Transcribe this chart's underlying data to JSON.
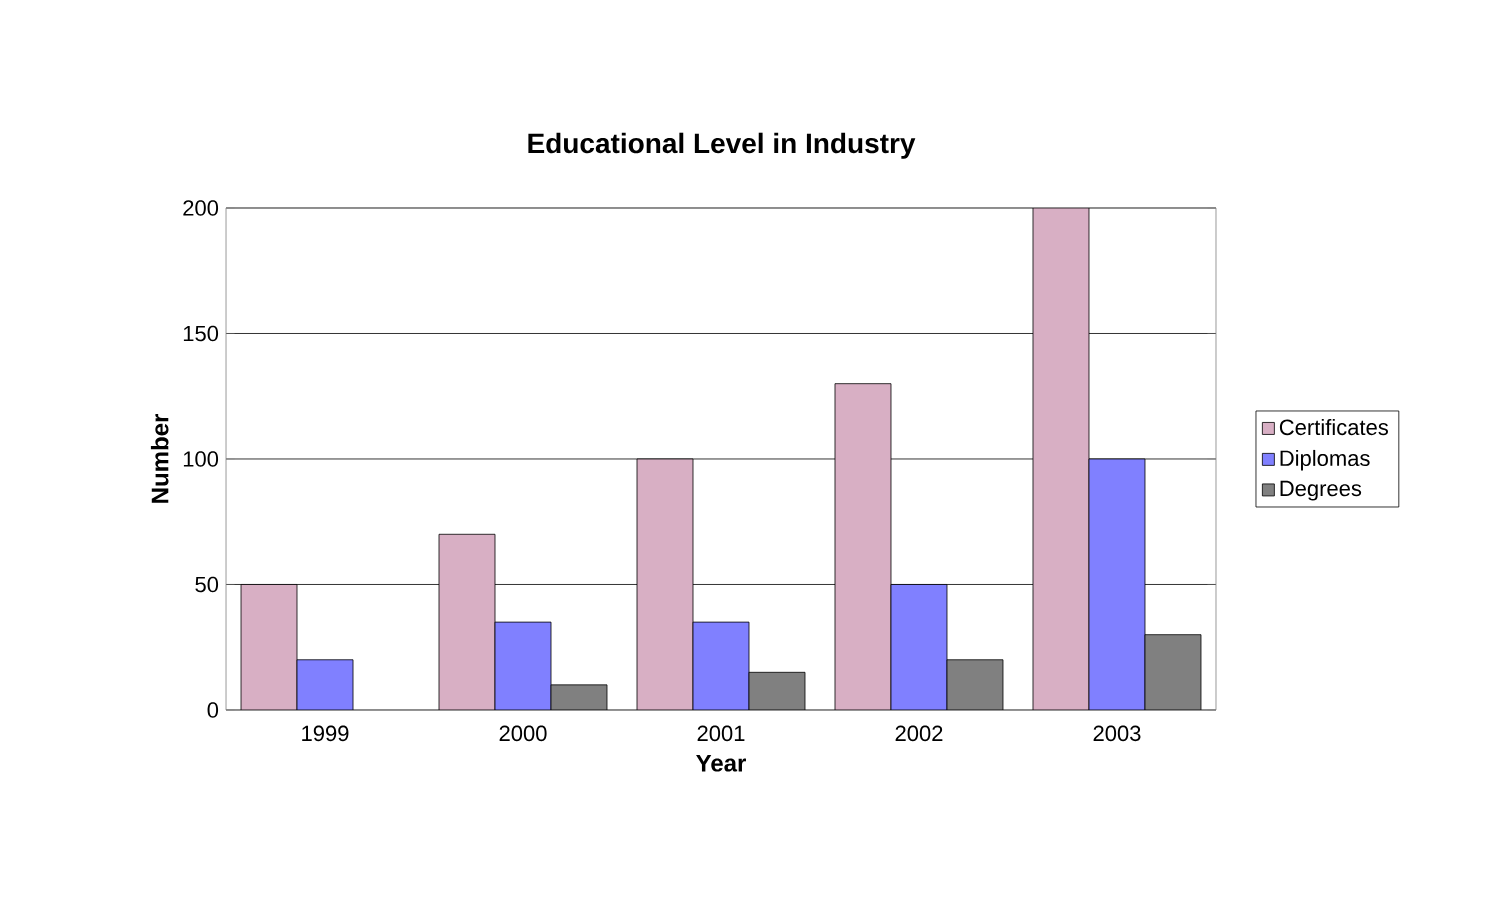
{
  "chart_data": {
    "type": "bar",
    "title": "Educational Level in Industry",
    "xlabel": "Year",
    "ylabel": "Number",
    "categories": [
      "1999",
      "2000",
      "2001",
      "2002",
      "2003"
    ],
    "series": [
      {
        "name": "Certificates",
        "color": "#d8afc4",
        "values": [
          50,
          70,
          100,
          130,
          200
        ]
      },
      {
        "name": "Diplomas",
        "color": "#8080ff",
        "values": [
          20,
          35,
          35,
          50,
          100
        ]
      },
      {
        "name": "Degrees",
        "color": "#808080",
        "values": [
          null,
          10,
          15,
          20,
          30
        ]
      }
    ],
    "ylim": [
      0,
      200
    ],
    "yticks": [
      0,
      50,
      100,
      150,
      200
    ],
    "grid": "y",
    "legend": "right"
  }
}
